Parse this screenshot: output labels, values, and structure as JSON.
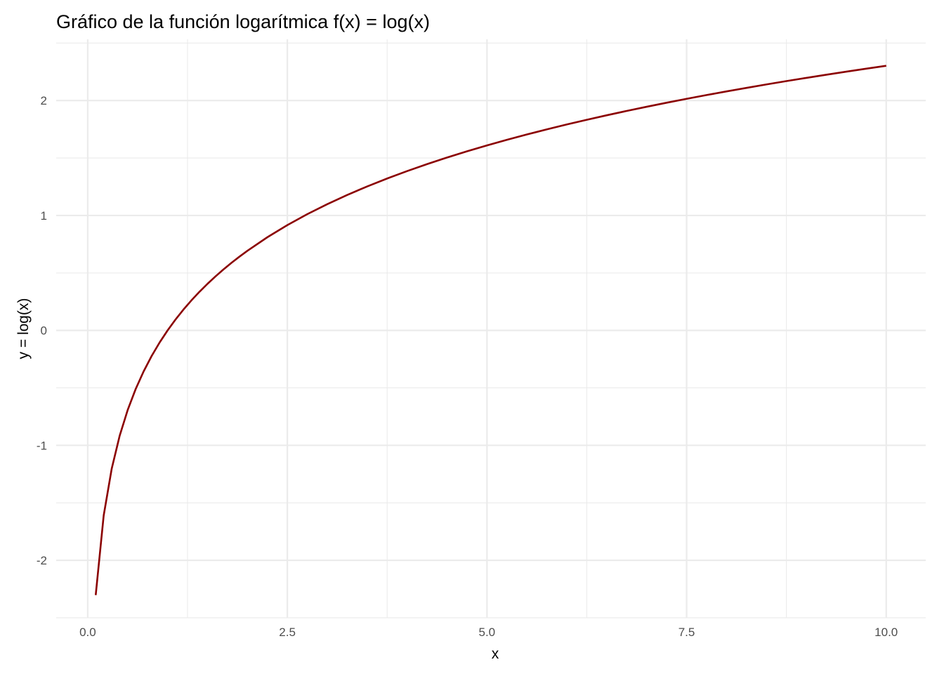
{
  "chart_data": {
    "type": "line",
    "title": "Gráfico de la función logarítmica f(x) = log(x)",
    "xlabel": "x",
    "ylabel": "y = log(x)",
    "xlim": [
      -0.395,
      10.495
    ],
    "ylim": [
      -2.5006,
      2.5327
    ],
    "x_ticks": [
      0.0,
      2.5,
      5.0,
      7.5,
      10.0
    ],
    "x_tick_labels": [
      "0.0",
      "2.5",
      "5.0",
      "7.5",
      "10.0"
    ],
    "y_ticks": [
      -2,
      -1,
      0,
      1,
      2
    ],
    "y_tick_labels": [
      "-2",
      "-1",
      "0",
      "1",
      "2"
    ],
    "grid": true,
    "legend": "none",
    "series": [
      {
        "color": "#8b0000",
        "x": [
          0.1,
          0.2,
          0.3,
          0.4,
          0.5,
          0.6,
          0.7,
          0.8,
          0.9,
          1.0,
          1.1,
          1.2,
          1.3,
          1.4,
          1.5,
          1.6,
          1.7,
          1.8,
          1.9,
          2.0,
          2.25,
          2.5,
          2.75,
          3.0,
          3.25,
          3.5,
          3.75,
          4.0,
          4.25,
          4.5,
          4.75,
          5.0,
          5.25,
          5.5,
          5.75,
          6.0,
          6.25,
          6.5,
          6.75,
          7.0,
          7.25,
          7.5,
          7.75,
          8.0,
          8.25,
          8.5,
          8.75,
          9.0,
          9.25,
          9.5,
          9.75,
          10.0
        ],
        "y": [
          -2.3026,
          -1.6094,
          -1.204,
          -0.9163,
          -0.6931,
          -0.5108,
          -0.3567,
          -0.2231,
          -0.1054,
          0.0,
          0.0953,
          0.1823,
          0.2624,
          0.3365,
          0.4055,
          0.47,
          0.5306,
          0.5878,
          0.6419,
          0.6931,
          0.8109,
          0.9163,
          1.0116,
          1.0986,
          1.1787,
          1.2528,
          1.3218,
          1.3863,
          1.4469,
          1.5041,
          1.5581,
          1.6094,
          1.6582,
          1.7047,
          1.7492,
          1.7918,
          1.8326,
          1.8718,
          1.9095,
          1.9459,
          1.981,
          2.0149,
          2.0477,
          2.0794,
          2.1102,
          2.1401,
          2.1691,
          2.1972,
          2.2246,
          2.2513,
          2.2773,
          2.3026
        ]
      }
    ]
  }
}
